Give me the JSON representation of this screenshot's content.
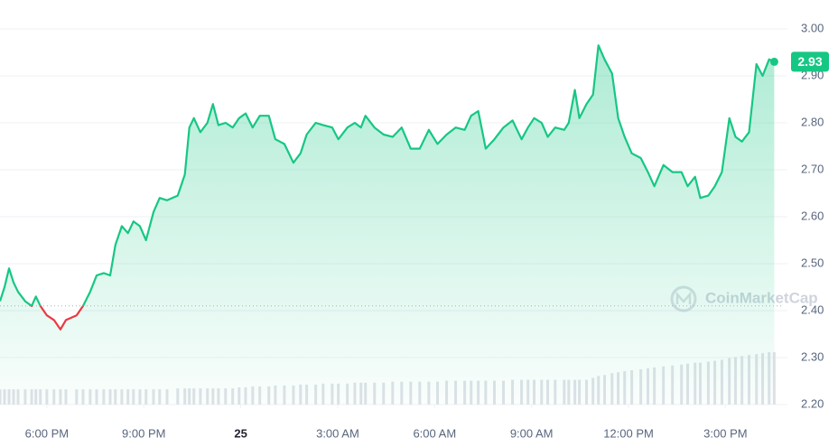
{
  "chart_data": {
    "type": "line",
    "x": [
      16.55,
      16.69,
      16.83,
      16.97,
      17.11,
      17.33,
      17.53,
      17.66,
      17.8,
      18,
      18.22,
      18.42,
      18.59,
      18.92,
      19.12,
      19.34,
      19.54,
      19.76,
      19.96,
      20.12,
      20.32,
      20.51,
      20.68,
      20.88,
      21.07,
      21.3,
      21.49,
      21.72,
      22.05,
      22.27,
      22.41,
      22.55,
      22.75,
      22.97,
      23.14,
      23.31,
      23.53,
      23.75,
      23.95,
      24.15,
      24.37,
      24.59,
      24.87,
      25.07,
      25.35,
      25.63,
      25.85,
      26.04,
      26.32,
      26.55,
      26.83,
      27.02,
      27.3,
      27.53,
      27.72,
      27.86,
      28.14,
      28.42,
      28.7,
      28.98,
      29.26,
      29.54,
      29.82,
      30.09,
      30.37,
      30.65,
      30.93,
      31.13,
      31.35,
      31.58,
      31.85,
      32.13,
      32.41,
      32.69,
      32.89,
      33.08,
      33.31,
      33.5,
      33.73,
      34.01,
      34.15,
      34.34,
      34.48,
      34.7,
      34.9,
      35.07,
      35.26,
      35.49,
      35.68,
      35.88,
      36.1,
      36.38,
      36.6,
      36.8,
      37.08,
      37.36,
      37.64,
      37.83,
      38.06,
      38.22,
      38.47,
      38.67,
      38.89,
      39.12,
      39.31,
      39.51,
      39.73,
      39.96,
      40.15,
      40.35,
      40.51
    ],
    "series": [
      {
        "color": "#16c784",
        "below_color": "#ea3943",
        "values": [
          2.42,
          2.45,
          2.49,
          2.46,
          2.44,
          2.42,
          2.41,
          2.43,
          2.41,
          2.39,
          2.38,
          2.36,
          2.38,
          2.39,
          2.41,
          2.44,
          2.475,
          2.48,
          2.475,
          2.54,
          2.58,
          2.565,
          2.59,
          2.58,
          2.55,
          2.61,
          2.64,
          2.635,
          2.645,
          2.69,
          2.79,
          2.81,
          2.78,
          2.8,
          2.84,
          2.795,
          2.8,
          2.79,
          2.81,
          2.82,
          2.79,
          2.815,
          2.815,
          2.765,
          2.755,
          2.715,
          2.735,
          2.775,
          2.8,
          2.795,
          2.79,
          2.765,
          2.79,
          2.8,
          2.79,
          2.815,
          2.79,
          2.775,
          2.77,
          2.79,
          2.745,
          2.745,
          2.785,
          2.755,
          2.775,
          2.79,
          2.785,
          2.815,
          2.825,
          2.745,
          2.765,
          2.79,
          2.805,
          2.765,
          2.79,
          2.81,
          2.8,
          2.77,
          2.79,
          2.785,
          2.8,
          2.87,
          2.81,
          2.84,
          2.86,
          2.965,
          2.935,
          2.905,
          2.81,
          2.77,
          2.735,
          2.725,
          2.695,
          2.665,
          2.71,
          2.695,
          2.695,
          2.665,
          2.685,
          2.64,
          2.645,
          2.665,
          2.695,
          2.81,
          2.77,
          2.76,
          2.78,
          2.925,
          2.9,
          2.935,
          2.93
        ]
      }
    ],
    "volume": {
      "color": "#dfe2e8",
      "values": [
        16,
        16,
        16,
        16,
        16,
        16,
        16,
        16,
        16,
        16,
        16,
        16,
        16,
        16,
        16,
        16,
        16,
        16,
        16,
        16,
        16,
        16,
        16,
        16,
        16,
        16,
        16,
        16,
        17,
        17,
        17,
        17,
        17,
        17,
        17,
        17,
        17,
        17,
        18,
        18,
        19,
        19,
        19,
        20,
        20,
        20,
        21,
        21,
        21,
        22,
        22,
        22,
        22,
        23,
        23,
        23,
        23,
        23,
        24,
        24,
        24,
        24,
        24,
        24,
        25,
        25,
        25,
        25,
        25,
        25,
        25,
        25,
        26,
        26,
        26,
        26,
        26,
        26,
        26,
        26,
        26,
        26,
        26,
        26,
        28,
        30,
        31,
        33,
        34,
        35,
        36,
        37,
        38,
        39,
        40,
        41,
        42,
        43,
        44,
        44,
        45,
        46,
        47,
        49,
        50,
        51,
        52,
        53,
        54,
        55,
        55
      ]
    },
    "baseline": 2.41,
    "last_price": 2.93,
    "watermark": "CoinMarketCap",
    "xlim": [
      16.55,
      40.75
    ],
    "xticks": [
      {
        "value": 18,
        "label": "6:00 PM"
      },
      {
        "value": 21,
        "label": "9:00 PM"
      },
      {
        "value": 24,
        "label": "25"
      },
      {
        "value": 27,
        "label": "3:00 AM"
      },
      {
        "value": 30,
        "label": "6:00 AM"
      },
      {
        "value": 33,
        "label": "9:00 AM"
      },
      {
        "value": 36,
        "label": "12:00 PM"
      },
      {
        "value": 39,
        "label": "3:00 PM"
      }
    ],
    "ylim": [
      2.2,
      3.0
    ],
    "yticks": [
      {
        "value": 3.0,
        "label": "3.00"
      },
      {
        "value": 2.9,
        "label": "2.90"
      },
      {
        "value": 2.8,
        "label": "2.80"
      },
      {
        "value": 2.7,
        "label": "2.70"
      },
      {
        "value": 2.6,
        "label": "2.60"
      },
      {
        "value": 2.5,
        "label": "2.50"
      },
      {
        "value": 2.4,
        "label": "2.40"
      },
      {
        "value": 2.3,
        "label": "2.30"
      },
      {
        "value": 2.2,
        "label": "2.20"
      }
    ],
    "grid": true
  }
}
